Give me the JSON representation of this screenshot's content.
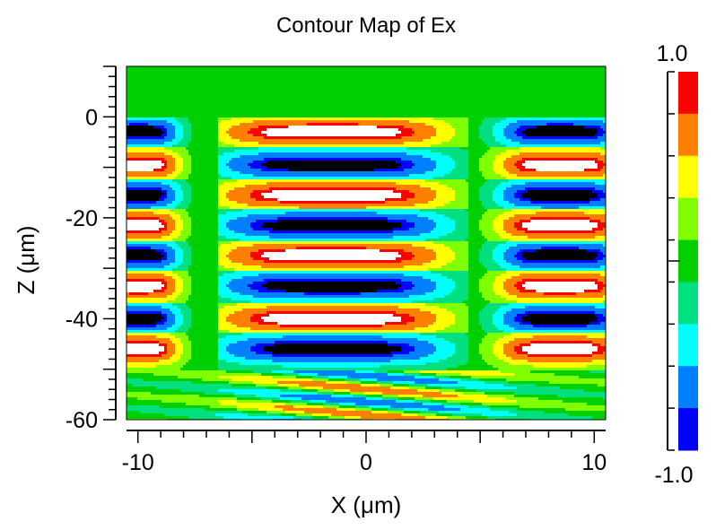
{
  "chart_data": {
    "type": "heatmap",
    "title": "Contour Map of Ex",
    "xlabel": "X (μm)",
    "ylabel": "Z (μm)",
    "xlim": [
      -10.5,
      10.5
    ],
    "ylim": [
      -60,
      10
    ],
    "x_ticks": [
      -10,
      0,
      10
    ],
    "x_tick_labels": [
      "-10",
      "0",
      "10"
    ],
    "y_ticks": [
      0,
      -20,
      -40,
      -60
    ],
    "y_tick_labels": [
      "0",
      "-20",
      "-40",
      "-60"
    ],
    "colorbar": {
      "min_label": "-1.0",
      "max_label": "1.0",
      "range": [
        -1.0,
        1.0
      ],
      "levels": 9,
      "colors_top_to_bottom": [
        "#ff0000",
        "#ff8000",
        "#ffff00",
        "#80ff00",
        "#00d000",
        "#00e080",
        "#00ffff",
        "#0080ff",
        "#0000ff"
      ]
    },
    "field_regions": {
      "air_top_z": 10,
      "air_bottom_z": 0,
      "air_value": 0.0,
      "waveguide_bottom_z": -50,
      "bands_waveguide": {
        "columns": [
          {
            "x_range": [
              -10.5,
              -6.5
            ],
            "x_center": -10,
            "start_sign": -1
          },
          {
            "x_range": [
              -6.5,
              4.5
            ],
            "x_center": -1.5,
            "start_sign": 1
          },
          {
            "x_range": [
              4.5,
              10.5
            ],
            "x_center": 8.5,
            "start_sign": -1
          }
        ],
        "band_centers_z": [
          -3,
          -9.5,
          -15.5,
          -21.5,
          -27.5,
          -33.5,
          -40,
          -46
        ],
        "band_halfwidth_z": 3.2
      }
    },
    "colorscale_white_black": {
      "high": "#ffffff",
      "low": "#000000"
    }
  }
}
